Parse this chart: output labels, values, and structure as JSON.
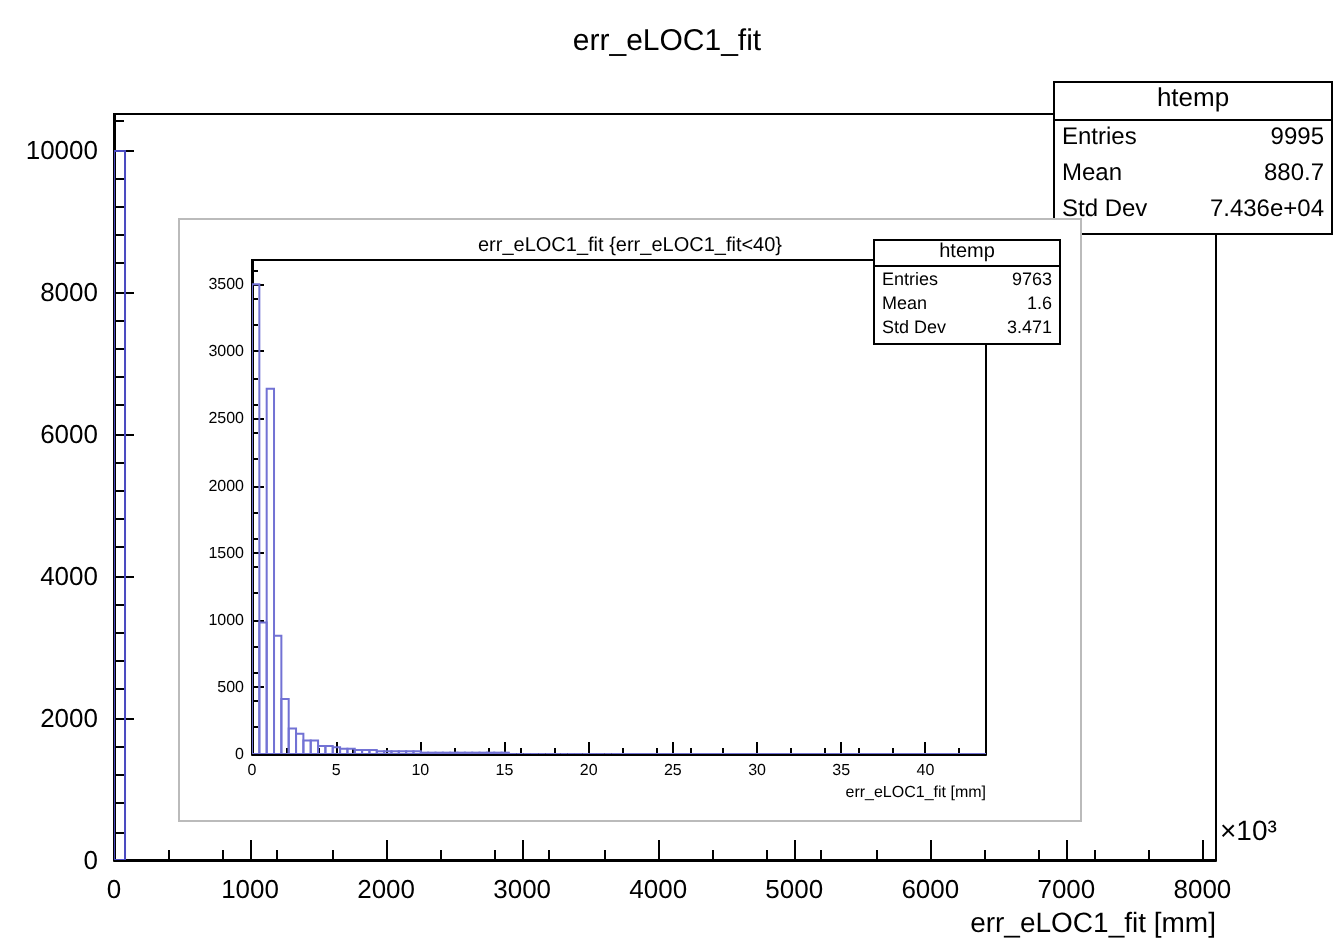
{
  "chart_data": [
    {
      "type": "histogram",
      "title": "err_eLOC1_fit",
      "xlabel": "err_eLOC1_fit [mm]",
      "color": "#4a4ac0",
      "bins": [
        0,
        81
      ],
      "values": [
        9980
      ],
      "xlim": [
        0,
        8100
      ],
      "xticks": [
        0,
        1000,
        2000,
        3000,
        4000,
        5000,
        6000,
        7000,
        8000
      ],
      "ylim": [
        0,
        10500
      ],
      "yticks": [
        0,
        2000,
        4000,
        6000,
        8000,
        10000
      ],
      "grid": false,
      "annotations": [
        "×10³",
        "htemp",
        "Entries",
        "9995",
        "Mean",
        "880.7",
        "Std Dev",
        "7.436e+04"
      ]
    },
    {
      "type": "histogram",
      "title": "err_eLOC1_fit {err_eLOC1_fit<40}",
      "xlabel": "err_eLOC1_fit [mm]",
      "color": "#7272d4",
      "bins": [
        0,
        0.436,
        0.872,
        1.308,
        1.744,
        2.18,
        2.616,
        3.052,
        3.488,
        3.924,
        4.36,
        4.796,
        5.232,
        5.668,
        6.104,
        6.54,
        6.976,
        7.412,
        7.848,
        8.284,
        8.72,
        9.156,
        9.592,
        10.028,
        10.464,
        10.9,
        11.336,
        11.772,
        12.208,
        12.644,
        13.08,
        13.516,
        13.952,
        14.388,
        14.824,
        15.26,
        15.696,
        16.132,
        16.568,
        17.004,
        17.44,
        17.876,
        18.312,
        18.748,
        19.184,
        19.62,
        20.056,
        20.492,
        20.928,
        21.364,
        21.8,
        43.6
      ],
      "values": [
        3500,
        980,
        2720,
        880,
        410,
        190,
        150,
        100,
        100,
        60,
        60,
        50,
        40,
        40,
        30,
        30,
        30,
        20,
        20,
        20,
        20,
        20,
        20,
        10,
        10,
        10,
        10,
        10,
        10,
        10,
        10,
        10,
        10,
        10,
        10,
        0,
        0,
        0,
        0,
        0,
        0,
        0,
        0,
        0,
        0,
        0,
        0,
        0,
        0,
        0,
        0
      ],
      "xlim": [
        0,
        43.6
      ],
      "xticks": [
        0,
        5,
        10,
        15,
        20,
        25,
        30,
        35,
        40
      ],
      "ylim": [
        0,
        3680
      ],
      "yticks": [
        0,
        500,
        1000,
        1500,
        2000,
        2500,
        3000,
        3500
      ],
      "grid": false,
      "annotations": [
        "htemp",
        "Entries",
        "9763",
        "Mean",
        "1.6",
        "Std Dev",
        "3.471"
      ]
    }
  ]
}
